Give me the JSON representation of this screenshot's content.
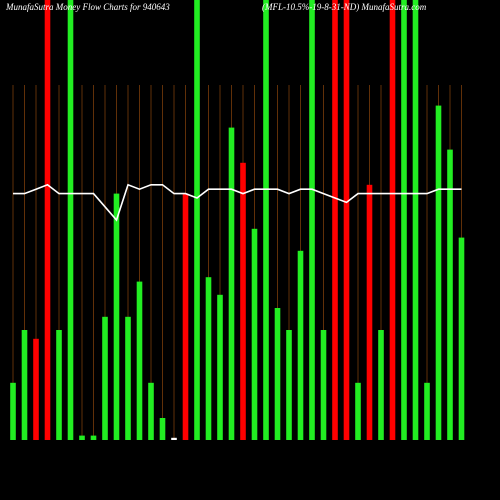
{
  "chart_data": {
    "type": "bar",
    "title": "MunafaSutra Money Flow Charts for 940643",
    "subtitle": "(MFL-10.5%-19-8-31-ND) MunafaSutra.com",
    "categories": [
      null,
      null,
      null,
      null,
      null,
      null,
      null,
      null,
      null,
      null,
      null,
      null,
      null,
      null,
      null,
      null,
      null,
      null,
      null,
      null,
      null,
      null,
      null,
      null,
      null,
      null,
      null,
      null,
      null,
      null,
      null,
      null,
      null,
      null,
      null,
      null,
      null,
      null,
      null,
      null
    ],
    "ylim": [
      0,
      100
    ],
    "grid": true,
    "series": [
      {
        "values": [
          13,
          25,
          23,
          100,
          25,
          100,
          1,
          1,
          28,
          56,
          28,
          36,
          13,
          5,
          0.5,
          56,
          100,
          37,
          33,
          71,
          63,
          48,
          100,
          30,
          25,
          43,
          100,
          25,
          100,
          100,
          13,
          58,
          25,
          100,
          100,
          100,
          13,
          76,
          66,
          46
        ],
        "colors": [
          "#22ee22",
          "#22ee22",
          "#ff0000",
          "#ff0000",
          "#22ee22",
          "#22ee22",
          "#22ee22",
          "#22ee22",
          "#22ee22",
          "#22ee22",
          "#22ee22",
          "#22ee22",
          "#22ee22",
          "#22ee22",
          "#ffffff",
          "#ff0000",
          "#22ee22",
          "#22ee22",
          "#22ee22",
          "#22ee22",
          "#ff0000",
          "#22ee22",
          "#22ee22",
          "#22ee22",
          "#22ee22",
          "#22ee22",
          "#22ee22",
          "#22ee22",
          "#ff0000",
          "#ff0000",
          "#22ee22",
          "#ff0000",
          "#22ee22",
          "#ff0000",
          "#22ee22",
          "#22ee22",
          "#22ee22",
          "#22ee22",
          "#22ee22",
          "#22ee22"
        ]
      },
      {
        "type": "line",
        "color": "#ffffff",
        "values": [
          56,
          56,
          57,
          58,
          56,
          56,
          56,
          56,
          53,
          50,
          58,
          57,
          58,
          58,
          56,
          56,
          55,
          57,
          57,
          57,
          56,
          57,
          57,
          57,
          56,
          57,
          57,
          56,
          55,
          54,
          56,
          56,
          56,
          56,
          56,
          56,
          56,
          57,
          57,
          57
        ]
      }
    ]
  }
}
